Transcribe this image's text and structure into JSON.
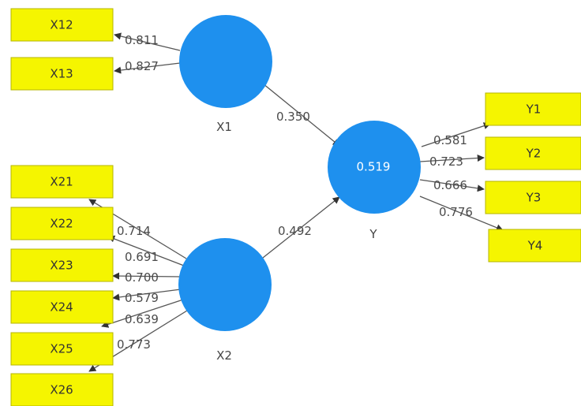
{
  "latent": {
    "x1": {
      "label": "X1"
    },
    "x2": {
      "label": "X2"
    },
    "y": {
      "label": "Y",
      "r2": "0.519"
    }
  },
  "indicators": {
    "x12": "X12",
    "x13": "X13",
    "x21": "X21",
    "x22": "X22",
    "x23": "X23",
    "x24": "X24",
    "x25": "X25",
    "x26": "X26",
    "y1": "Y1",
    "y2": "Y2",
    "y3": "Y3",
    "y4": "Y4"
  },
  "loadings": {
    "x12": "0.811",
    "x13": "0.827",
    "x21": "0.714",
    "x22": "0.691",
    "x23": "0.700",
    "x24": "0.579",
    "x25": "0.639",
    "x26": "0.773",
    "y1": "0.581",
    "y2": "0.723",
    "y3": "0.666",
    "y4": "0.776"
  },
  "paths": {
    "x1_y": "0.350",
    "x2_y": "0.492"
  },
  "colors": {
    "latent_fill": "#1e90ee",
    "indicator_fill": "#f5f500",
    "line": "#555555"
  }
}
